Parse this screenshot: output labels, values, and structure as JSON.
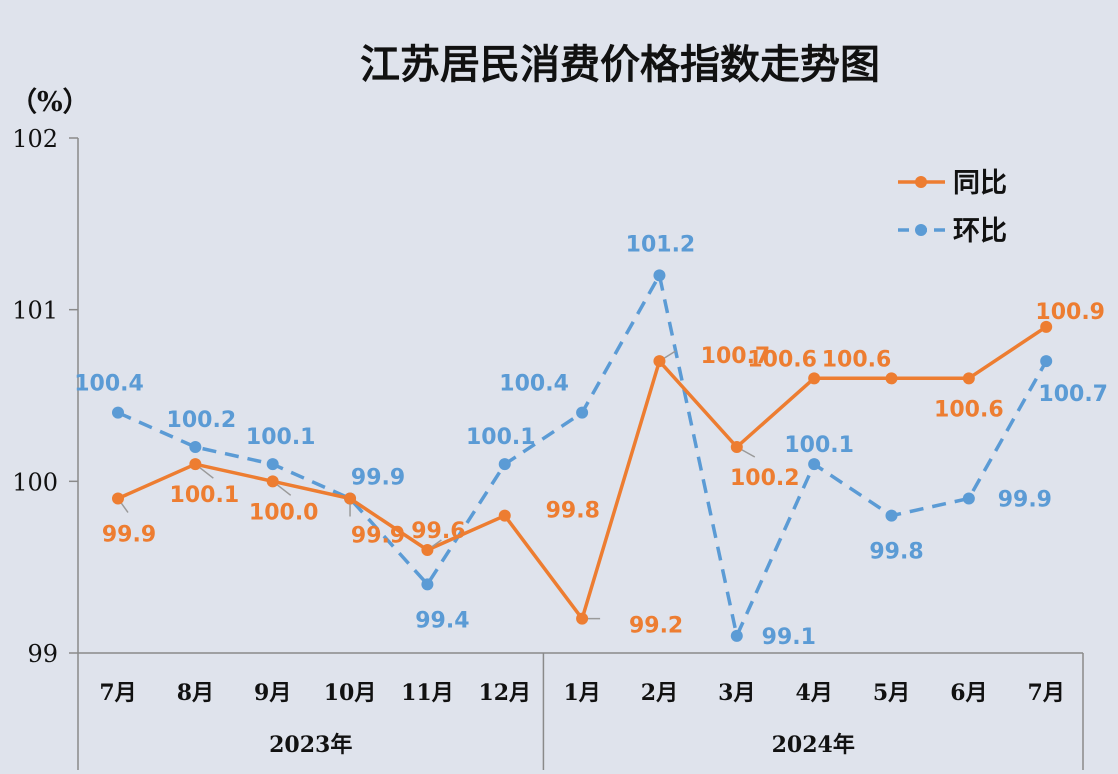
{
  "chart_data": {
    "type": "line",
    "title": "江苏居民消费价格指数走势图",
    "unit_label": "（%）",
    "yticks": [
      "99",
      "100",
      "101",
      "102"
    ],
    "ylim": [
      99,
      102
    ],
    "categories": [
      "7月",
      "8月",
      "9月",
      "10月",
      "11月",
      "12月",
      "1月",
      "2月",
      "3月",
      "4月",
      "5月",
      "6月",
      "7月"
    ],
    "groups": [
      {
        "label": "2023年",
        "count": 6
      },
      {
        "label": "2024年",
        "count": 7
      }
    ],
    "legend_position": "top-right",
    "grid": false,
    "series": [
      {
        "name": "同比",
        "color": "#ed7d31",
        "style": "solid",
        "values": [
          99.9,
          100.1,
          100.0,
          99.9,
          99.6,
          99.8,
          99.2,
          100.7,
          100.2,
          100.6,
          100.6,
          100.6,
          100.9
        ],
        "labels": [
          "99.9",
          "100.1",
          "100.0",
          "99.9",
          "99.6",
          "99.8",
          "99.2",
          "100.7",
          "100.2",
          "100.6",
          "100.6",
          "100.6",
          "100.9"
        ]
      },
      {
        "name": "环比",
        "color": "#5b9bd5",
        "style": "dashed",
        "values": [
          100.4,
          100.2,
          100.1,
          99.9,
          99.4,
          100.1,
          100.4,
          101.2,
          99.1,
          100.1,
          99.8,
          99.9,
          100.7
        ],
        "labels": [
          "100.4",
          "100.2",
          "100.1",
          "99.9",
          "99.4",
          "100.1",
          "100.4",
          "101.2",
          "99.1",
          "100.1",
          "99.8",
          "99.9",
          "100.7"
        ]
      }
    ]
  }
}
